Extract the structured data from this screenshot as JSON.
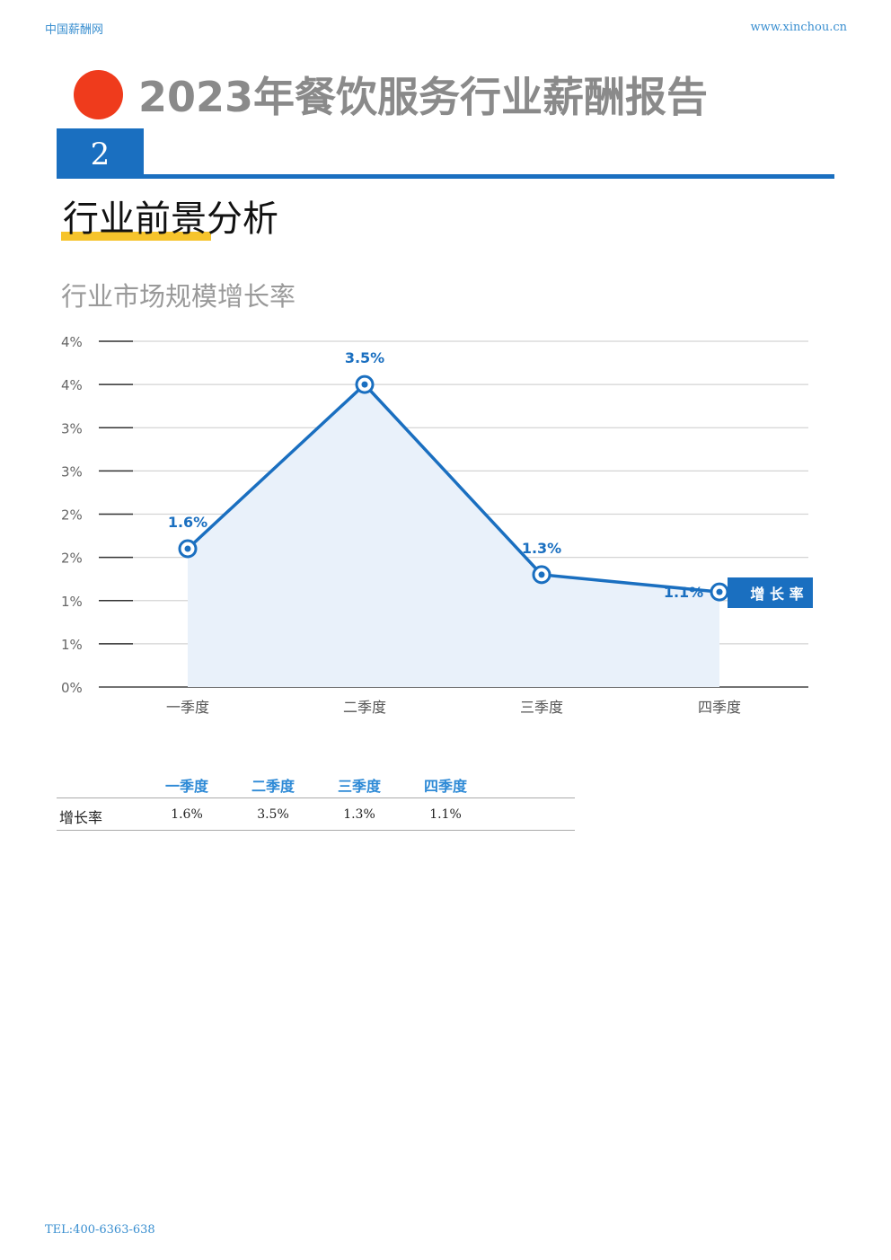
{
  "header": {
    "site_name": "中国薪酬网",
    "site_url": "www.xinchou.cn"
  },
  "report": {
    "title": "2023年餐饮服务行业薪酬报告"
  },
  "section": {
    "number": "2",
    "heading": "行业前景分析"
  },
  "colors": {
    "accent_blue": "#1a6fc0",
    "title_red": "#ef3b1c",
    "underline_yellow": "#f6c42c",
    "area_fill": "#e9f1fa"
  },
  "chart_data": {
    "type": "area",
    "title": "行业市场规模增长率",
    "categories": [
      "一季度",
      "二季度",
      "三季度",
      "四季度"
    ],
    "series": [
      {
        "name": "增长率",
        "values": [
          1.6,
          3.5,
          1.3,
          1.1
        ],
        "labels": [
          "1.6%",
          "3.5%",
          "1.3%",
          "1.1%"
        ]
      }
    ],
    "ylim": [
      0,
      4
    ],
    "yticks": [
      "0%",
      "1%",
      "1%",
      "2%",
      "2%",
      "3%",
      "3%",
      "4%",
      "4%"
    ],
    "grid": true,
    "legend_placement": "right",
    "legend_label": "增 长 率"
  },
  "table": {
    "columns": [
      "一季度",
      "二季度",
      "三季度",
      "四季度"
    ],
    "row_label": "增长率",
    "values": [
      "1.6%",
      "3.5%",
      "1.3%",
      "1.1%"
    ]
  },
  "footer": {
    "tel": "TEL:400-6363-638"
  }
}
